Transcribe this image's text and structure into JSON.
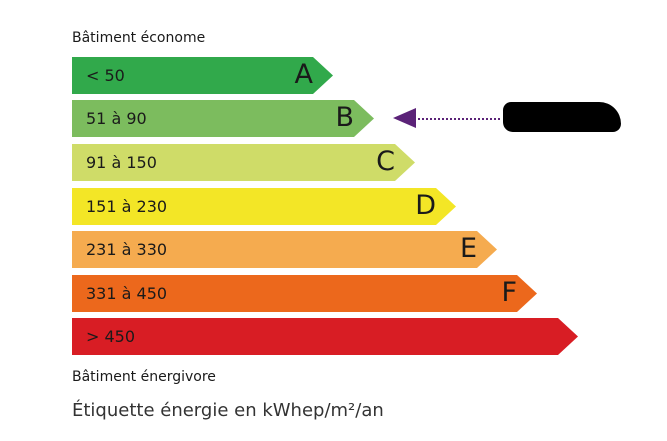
{
  "top_label": "Bâtiment économe",
  "bottom_label": "Bâtiment énergivore",
  "footer": "Étiquette énergie en kWhep/m²/an",
  "classes": [
    {
      "range": "< 50",
      "letter": "A",
      "color": "#31a94b"
    },
    {
      "range": "51 à 90",
      "letter": "B",
      "color": "#7cbc5e"
    },
    {
      "range": "91 à 150",
      "letter": "C",
      "color": "#cfdc68"
    },
    {
      "range": "151 à 230",
      "letter": "D",
      "color": "#f3e626"
    },
    {
      "range": "231 à 330",
      "letter": "E",
      "color": "#f5ab4f"
    },
    {
      "range": "331 à 450",
      "letter": "F",
      "color": "#ec681c"
    },
    {
      "range": "> 450",
      "letter": "",
      "color": "#d81d24"
    }
  ],
  "indicator": {
    "class": "B",
    "color": "#5b2278"
  }
}
